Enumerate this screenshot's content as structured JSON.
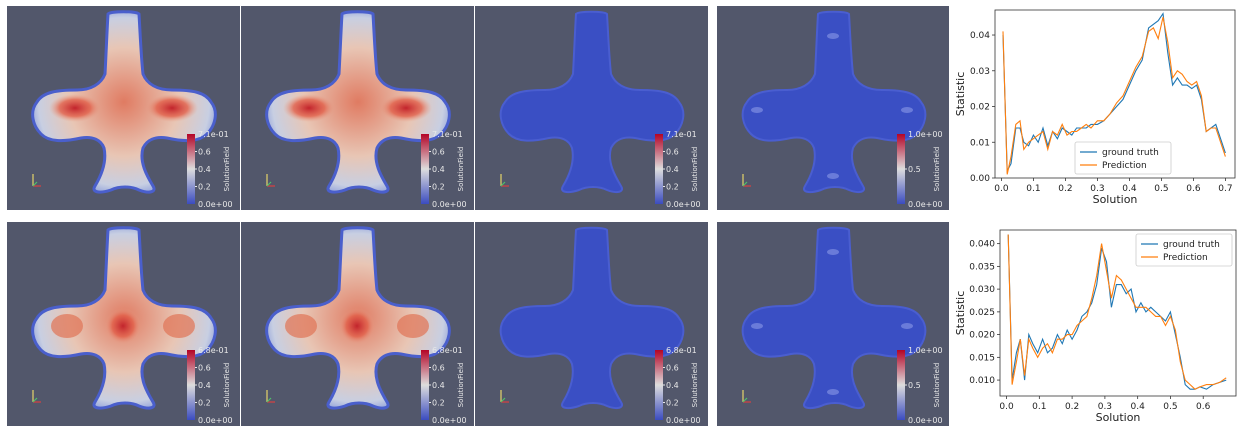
{
  "colors": {
    "background": "#52576b",
    "ground_truth": "#1f77b4",
    "prediction": "#ff7f0e",
    "field_low": "#3b4cc0",
    "field_mid": "#dddddd",
    "field_high": "#b40426"
  },
  "rows": [
    {
      "panels": [
        {
          "kind": "ground-truth",
          "colorbar": {
            "max": "7.1e-01",
            "ticks": [
              "0.6",
              "0.4",
              "0.2"
            ],
            "min": "0.0e+00",
            "title": "SolutionField"
          }
        },
        {
          "kind": "prediction",
          "colorbar": {
            "max": "7.1e-01",
            "ticks": [
              "0.6",
              "0.4",
              "0.2"
            ],
            "min": "0.0e+00",
            "title": "SolutionField"
          }
        },
        {
          "kind": "error",
          "colorbar": {
            "max": "7.1e-01",
            "ticks": [
              "0.6",
              "0.4",
              "0.2"
            ],
            "min": "0.0e+00",
            "title": "SolutionField"
          }
        },
        {
          "kind": "relative-error",
          "colorbar": {
            "max": "1.0e+00",
            "ticks": [
              "0.5"
            ],
            "min": "0.0e+00",
            "title": "SolutionField"
          }
        }
      ]
    },
    {
      "panels": [
        {
          "kind": "ground-truth",
          "colorbar": {
            "max": "6.8e-01",
            "ticks": [
              "0.6",
              "0.4",
              "0.2"
            ],
            "min": "0.0e+00",
            "title": "SolutionField"
          }
        },
        {
          "kind": "prediction",
          "colorbar": {
            "max": "6.8e-01",
            "ticks": [
              "0.6",
              "0.4",
              "0.2"
            ],
            "min": "0.0e+00",
            "title": "SolutionField"
          }
        },
        {
          "kind": "error",
          "colorbar": {
            "max": "6.8e-01",
            "ticks": [
              "0.6",
              "0.4",
              "0.2"
            ],
            "min": "0.0e+00",
            "title": "SolutionField"
          }
        },
        {
          "kind": "relative-error",
          "colorbar": {
            "max": "1.0e+00",
            "ticks": [
              "0.5"
            ],
            "min": "0.0e+00",
            "title": "SolutionField"
          }
        }
      ]
    }
  ],
  "chart_data": [
    {
      "type": "line",
      "xlabel": "Solution",
      "ylabel": "Statistic",
      "xlim": [
        -0.02,
        0.73
      ],
      "ylim": [
        0.0,
        0.047
      ],
      "xticks": [
        "0.0",
        "0.1",
        "0.2",
        "0.3",
        "0.4",
        "0.5",
        "0.6",
        "0.7"
      ],
      "yticks": [
        "0.00",
        "0.01",
        "0.02",
        "0.03",
        "0.04"
      ],
      "legend_position": "lower-center",
      "series": [
        {
          "name": "ground truth",
          "x": [
            0.005,
            0.018,
            0.03,
            0.045,
            0.058,
            0.07,
            0.085,
            0.1,
            0.115,
            0.13,
            0.145,
            0.16,
            0.175,
            0.19,
            0.205,
            0.22,
            0.235,
            0.25,
            0.265,
            0.28,
            0.3,
            0.32,
            0.34,
            0.36,
            0.38,
            0.4,
            0.42,
            0.44,
            0.46,
            0.475,
            0.49,
            0.505,
            0.52,
            0.535,
            0.55,
            0.565,
            0.58,
            0.595,
            0.61,
            0.625,
            0.64,
            0.655,
            0.67,
            0.7
          ],
          "y": [
            0.04,
            0.002,
            0.004,
            0.014,
            0.014,
            0.01,
            0.009,
            0.012,
            0.01,
            0.014,
            0.009,
            0.013,
            0.011,
            0.014,
            0.013,
            0.012,
            0.014,
            0.014,
            0.014,
            0.015,
            0.015,
            0.016,
            0.018,
            0.02,
            0.022,
            0.026,
            0.03,
            0.033,
            0.042,
            0.043,
            0.044,
            0.046,
            0.035,
            0.026,
            0.028,
            0.026,
            0.026,
            0.025,
            0.026,
            0.022,
            0.013,
            0.014,
            0.015,
            0.007
          ]
        },
        {
          "name": "Prediction",
          "x": [
            0.005,
            0.018,
            0.03,
            0.045,
            0.058,
            0.07,
            0.085,
            0.1,
            0.115,
            0.13,
            0.145,
            0.16,
            0.175,
            0.19,
            0.205,
            0.22,
            0.235,
            0.25,
            0.265,
            0.28,
            0.3,
            0.32,
            0.34,
            0.36,
            0.38,
            0.4,
            0.42,
            0.44,
            0.46,
            0.475,
            0.49,
            0.505,
            0.52,
            0.535,
            0.55,
            0.565,
            0.58,
            0.595,
            0.61,
            0.625,
            0.64,
            0.655,
            0.67,
            0.7
          ],
          "y": [
            0.041,
            0.001,
            0.006,
            0.015,
            0.016,
            0.008,
            0.01,
            0.011,
            0.012,
            0.013,
            0.008,
            0.013,
            0.012,
            0.015,
            0.012,
            0.013,
            0.013,
            0.014,
            0.015,
            0.014,
            0.016,
            0.016,
            0.018,
            0.021,
            0.023,
            0.027,
            0.031,
            0.034,
            0.041,
            0.042,
            0.039,
            0.045,
            0.038,
            0.028,
            0.03,
            0.029,
            0.027,
            0.026,
            0.027,
            0.023,
            0.013,
            0.014,
            0.014,
            0.006
          ]
        }
      ]
    },
    {
      "type": "line",
      "xlabel": "Solution",
      "ylabel": "Statistic",
      "xlim": [
        -0.02,
        0.7
      ],
      "ylim": [
        0.0065,
        0.043
      ],
      "xticks": [
        "0.0",
        "0.1",
        "0.2",
        "0.3",
        "0.4",
        "0.5",
        "0.6"
      ],
      "yticks": [
        "0.010",
        "0.015",
        "0.020",
        "0.025",
        "0.030",
        "0.035",
        "0.040"
      ],
      "legend_position": "top-right",
      "series": [
        {
          "name": "ground truth",
          "x": [
            0.005,
            0.017,
            0.03,
            0.042,
            0.055,
            0.068,
            0.08,
            0.095,
            0.11,
            0.125,
            0.14,
            0.155,
            0.17,
            0.185,
            0.2,
            0.215,
            0.23,
            0.245,
            0.26,
            0.275,
            0.29,
            0.305,
            0.32,
            0.335,
            0.35,
            0.365,
            0.38,
            0.395,
            0.41,
            0.425,
            0.44,
            0.455,
            0.47,
            0.485,
            0.5,
            0.515,
            0.53,
            0.545,
            0.56,
            0.575,
            0.59,
            0.61,
            0.63,
            0.65,
            0.67
          ],
          "y": [
            0.042,
            0.01,
            0.016,
            0.019,
            0.01,
            0.02,
            0.018,
            0.016,
            0.019,
            0.016,
            0.017,
            0.02,
            0.018,
            0.021,
            0.019,
            0.021,
            0.024,
            0.025,
            0.027,
            0.031,
            0.039,
            0.036,
            0.026,
            0.031,
            0.031,
            0.029,
            0.03,
            0.025,
            0.027,
            0.025,
            0.026,
            0.025,
            0.024,
            0.023,
            0.025,
            0.02,
            0.015,
            0.009,
            0.008,
            0.008,
            0.0085,
            0.008,
            0.009,
            0.0095,
            0.01
          ]
        },
        {
          "name": "Prediction",
          "x": [
            0.005,
            0.017,
            0.03,
            0.042,
            0.055,
            0.068,
            0.08,
            0.095,
            0.11,
            0.125,
            0.14,
            0.155,
            0.17,
            0.185,
            0.2,
            0.215,
            0.23,
            0.245,
            0.26,
            0.275,
            0.29,
            0.305,
            0.32,
            0.335,
            0.35,
            0.365,
            0.38,
            0.395,
            0.41,
            0.425,
            0.44,
            0.455,
            0.47,
            0.485,
            0.5,
            0.515,
            0.53,
            0.545,
            0.56,
            0.575,
            0.59,
            0.61,
            0.63,
            0.65,
            0.67
          ],
          "y": [
            0.042,
            0.009,
            0.014,
            0.019,
            0.011,
            0.019,
            0.017,
            0.015,
            0.017,
            0.018,
            0.016,
            0.019,
            0.019,
            0.02,
            0.02,
            0.022,
            0.023,
            0.024,
            0.028,
            0.033,
            0.04,
            0.034,
            0.028,
            0.033,
            0.032,
            0.03,
            0.028,
            0.026,
            0.026,
            0.026,
            0.025,
            0.024,
            0.024,
            0.022,
            0.024,
            0.021,
            0.014,
            0.01,
            0.009,
            0.008,
            0.0085,
            0.009,
            0.009,
            0.0095,
            0.0105
          ]
        }
      ]
    }
  ]
}
